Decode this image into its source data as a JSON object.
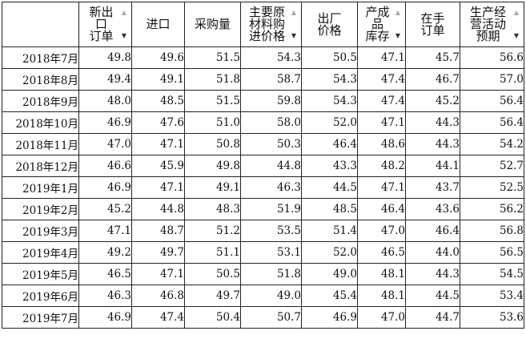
{
  "headers": [
    {
      "label": "",
      "filter": false
    },
    {
      "label": "新出\n口\n订单",
      "filter": true
    },
    {
      "label": "进口",
      "filter": false
    },
    {
      "label": "采购量",
      "filter": false
    },
    {
      "label": "主要原\n材料购\n进价格",
      "filter": true
    },
    {
      "label": "出厂\n价格",
      "filter": false
    },
    {
      "label": "产成\n品\n库存",
      "filter": true
    },
    {
      "label": "在手\n订单",
      "filter": false
    },
    {
      "label": "生产经\n营活动\n预期",
      "filter": true
    }
  ],
  "rows": [
    {
      "month": "2018年7月",
      "values": [
        "49.8",
        "49.6",
        "51.5",
        "54.3",
        "50.5",
        "47.1",
        "45.7",
        "56.6"
      ]
    },
    {
      "month": "2018年8月",
      "values": [
        "49.4",
        "49.1",
        "51.8",
        "58.7",
        "54.3",
        "47.4",
        "46.7",
        "57.0"
      ]
    },
    {
      "month": "2018年9月",
      "values": [
        "48.0",
        "48.5",
        "51.5",
        "59.8",
        "54.3",
        "47.4",
        "45.2",
        "56.4"
      ]
    },
    {
      "month": "2018年10月",
      "values": [
        "46.9",
        "47.6",
        "51.0",
        "58.0",
        "52.0",
        "47.1",
        "44.3",
        "56.4"
      ]
    },
    {
      "month": "2018年11月",
      "values": [
        "47.0",
        "47.1",
        "50.8",
        "50.3",
        "46.4",
        "48.6",
        "44.3",
        "54.2"
      ]
    },
    {
      "month": "2018年12月",
      "values": [
        "46.6",
        "45.9",
        "49.8",
        "44.8",
        "43.3",
        "48.2",
        "44.1",
        "52.7"
      ]
    },
    {
      "month": "2019年1月",
      "values": [
        "46.9",
        "47.1",
        "49.1",
        "46.3",
        "44.5",
        "47.1",
        "43.7",
        "52.5"
      ]
    },
    {
      "month": "2019年2月",
      "values": [
        "45.2",
        "44.8",
        "48.3",
        "51.9",
        "48.5",
        "46.4",
        "43.6",
        "56.2"
      ]
    },
    {
      "month": "2019年3月",
      "values": [
        "47.1",
        "48.7",
        "51.2",
        "53.5",
        "51.4",
        "47.0",
        "46.4",
        "56.8"
      ]
    },
    {
      "month": "2019年4月",
      "values": [
        "49.2",
        "49.7",
        "51.1",
        "53.1",
        "52.0",
        "46.5",
        "44.0",
        "56.5"
      ]
    },
    {
      "month": "2019年5月",
      "values": [
        "46.5",
        "47.1",
        "50.5",
        "51.8",
        "49.0",
        "48.1",
        "44.3",
        "54.5"
      ]
    },
    {
      "month": "2019年6月",
      "values": [
        "46.3",
        "46.8",
        "49.7",
        "49.0",
        "45.4",
        "48.1",
        "44.5",
        "53.4"
      ]
    },
    {
      "month": "2019年7月",
      "values": [
        "46.9",
        "47.4",
        "50.4",
        "50.7",
        "46.9",
        "47.0",
        "44.7",
        "53.6"
      ]
    }
  ]
}
